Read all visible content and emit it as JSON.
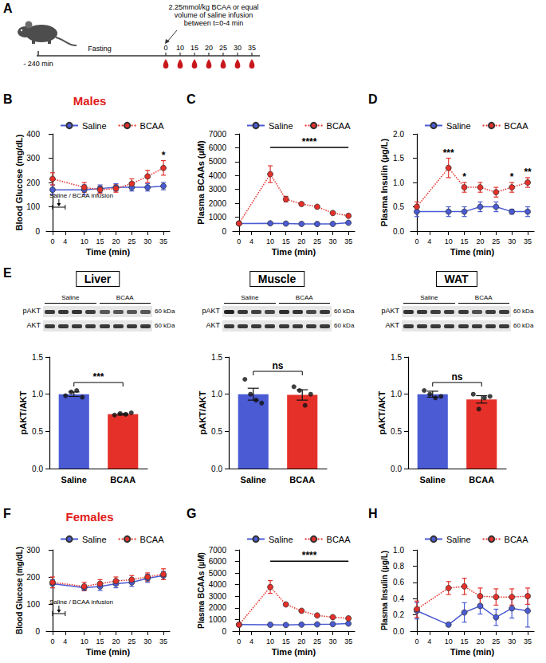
{
  "diagram": {
    "panel": "A",
    "start": "- 240 min",
    "phase": "Fasting",
    "infusion": [
      "2.25mmol/kg BCAA or equal",
      "volume of saline infusion",
      "between t=0-4 min"
    ],
    "times": [
      0,
      10,
      15,
      20,
      25,
      30,
      35
    ]
  },
  "chart_data": [
    {
      "panel": "B",
      "type": "line",
      "title": "Males",
      "xlabel": "Time (min)",
      "ylabel": "Blood Glucose (mg/dL)",
      "x": [
        0,
        10,
        15,
        20,
        25,
        30,
        35
      ],
      "xlim": [
        -2,
        37
      ],
      "xticks": [
        0,
        4,
        10,
        15,
        20,
        25,
        30,
        35
      ],
      "ylim": [
        0,
        400
      ],
      "yticks": [
        0,
        100,
        200,
        300,
        400
      ],
      "grid": false,
      "legend": "top",
      "series": [
        {
          "name": "Saline",
          "color": "#4a5bd4",
          "marker": "circle",
          "line_style": "solid",
          "values": [
            170,
            170,
            175,
            180,
            180,
            180,
            185
          ],
          "errors": [
            20,
            20,
            15,
            15,
            15,
            15,
            15
          ]
        },
        {
          "name": "BCAA",
          "color": "#e5302a",
          "marker": "circle",
          "line_style": "dotted",
          "values": [
            215,
            180,
            170,
            175,
            195,
            225,
            260
          ],
          "errors": [
            25,
            20,
            15,
            15,
            20,
            25,
            30
          ]
        }
      ],
      "annotations": [
        {
          "x": 35,
          "text": "*"
        }
      ],
      "infusion": {
        "x": [
          0,
          4
        ],
        "text": "Saline / BCAA infusion"
      }
    },
    {
      "panel": "C",
      "type": "line",
      "xlabel": "Time (min)",
      "ylabel": "Plasma BCAAs (µM)",
      "x": [
        0,
        10,
        15,
        20,
        25,
        30,
        35
      ],
      "xlim": [
        -2,
        37
      ],
      "xticks": [
        0,
        4,
        10,
        15,
        20,
        25,
        30,
        35
      ],
      "ylim": [
        0,
        7000
      ],
      "yticks": [
        0,
        1000,
        2000,
        3000,
        4000,
        5000,
        6000,
        7000
      ],
      "grid": false,
      "legend": "top",
      "series": [
        {
          "name": "Saline",
          "color": "#4a5bd4",
          "marker": "circle",
          "line_style": "solid",
          "values": [
            550,
            560,
            540,
            520,
            510,
            520,
            600
          ],
          "errors": [
            50,
            40,
            40,
            40,
            40,
            40,
            60
          ]
        },
        {
          "name": "BCAA",
          "color": "#e5302a",
          "marker": "circle",
          "line_style": "dotted",
          "values": [
            550,
            4100,
            2300,
            1950,
            1750,
            1300,
            1100
          ],
          "errors": [
            80,
            600,
            200,
            100,
            100,
            80,
            80
          ]
        }
      ],
      "annotations": [
        {
          "x": [
            10,
            35
          ],
          "text": "****"
        }
      ]
    },
    {
      "panel": "D",
      "type": "line",
      "xlabel": "Time (min)",
      "ylabel": "Plasma Insulin (µg/L)",
      "x": [
        0,
        10,
        15,
        20,
        25,
        30,
        35
      ],
      "xlim": [
        -2,
        37
      ],
      "xticks": [
        0,
        4,
        10,
        15,
        20,
        25,
        30,
        35
      ],
      "ylim": [
        0,
        2
      ],
      "yticks": [
        {
          "value": 0,
          "label": "0.0"
        },
        0.5,
        {
          "value": 1,
          "label": "1.0"
        },
        1.5,
        {
          "value": 2,
          "label": "2.0"
        }
      ],
      "grid": false,
      "legend": "top",
      "series": [
        {
          "name": "Saline",
          "color": "#4a5bd4",
          "marker": "circle",
          "line_style": "solid",
          "values": [
            0.4,
            0.4,
            0.4,
            0.5,
            0.5,
            0.4,
            0.4
          ],
          "errors": [
            0.1,
            0.1,
            0.1,
            0.1,
            0.1,
            0.05,
            0.1
          ]
        },
        {
          "name": "BCAA",
          "color": "#e5302a",
          "marker": "circle",
          "line_style": "dotted",
          "values": [
            0.5,
            1.3,
            0.9,
            0.9,
            0.8,
            0.9,
            1.0
          ],
          "errors": [
            0.1,
            0.2,
            0.1,
            0.1,
            0.1,
            0.1,
            0.1
          ]
        }
      ],
      "annotations": [
        {
          "x": 10,
          "text": "***"
        },
        {
          "x": 15,
          "text": "*"
        },
        {
          "x": 30,
          "text": "*"
        },
        {
          "x": 35,
          "text": "**"
        }
      ]
    },
    {
      "panel": "E",
      "type": "bar",
      "title": "Liver",
      "ylabel": "pAKT/AKT",
      "categories": [
        "Saline",
        "BCAA"
      ],
      "values": [
        1.0,
        0.73
      ],
      "errors": [
        0.03,
        0.01
      ],
      "points": [
        [
          0.98,
          1.03,
          1.05,
          0.96
        ],
        [
          0.72,
          0.74,
          0.73,
          0.75
        ]
      ],
      "colors": [
        "#4a5bd4",
        "#e5302a"
      ],
      "ylim": [
        0,
        1.5
      ],
      "yticks": [
        {
          "value": 0,
          "label": "0.0"
        },
        0.5,
        {
          "value": 1,
          "label": "1.0"
        },
        1.5
      ],
      "grid": false,
      "annotations": [
        {
          "x": [
            "Saline",
            "BCAA"
          ],
          "text": "***"
        }
      ],
      "blot": {
        "groups": [
          "Saline",
          "BCAA"
        ],
        "bands": [
          "pAKT",
          "AKT"
        ],
        "weight": "60 kDa"
      }
    },
    {
      "type": "bar",
      "title": "Muscle",
      "ylabel": "pAKT/AKT",
      "categories": [
        "Saline",
        "BCAA"
      ],
      "values": [
        1.0,
        0.99
      ],
      "errors": [
        0.08,
        0.07
      ],
      "points": [
        [
          1.2,
          1.0,
          0.92,
          0.88
        ],
        [
          1.1,
          1.05,
          0.85,
          1.0
        ]
      ],
      "colors": [
        "#4a5bd4",
        "#e5302a"
      ],
      "ylim": [
        0,
        1.5
      ],
      "yticks": [
        {
          "value": 0,
          "label": "0.0"
        },
        0.5,
        {
          "value": 1,
          "label": "1.0"
        },
        1.5
      ],
      "grid": false,
      "annotations": [
        {
          "x": [
            "Saline",
            "BCAA"
          ],
          "text": "ns"
        }
      ],
      "blot": {
        "groups": [
          "Saline",
          "BCAA"
        ],
        "bands": [
          "pAKT",
          "AKT"
        ],
        "weight": "60 kDa"
      }
    },
    {
      "type": "bar",
      "title": "WAT",
      "ylabel": "pAKT/AKT",
      "categories": [
        "Saline",
        "BCAA"
      ],
      "values": [
        1.0,
        0.93
      ],
      "errors": [
        0.04,
        0.05
      ],
      "points": [
        [
          1.05,
          1.0,
          0.95,
          0.97
        ],
        [
          1.0,
          0.8,
          0.95,
          0.97
        ]
      ],
      "colors": [
        "#4a5bd4",
        "#e5302a"
      ],
      "ylim": [
        0,
        1.5
      ],
      "yticks": [
        {
          "value": 0,
          "label": "0.0"
        },
        0.5,
        {
          "value": 1,
          "label": "1.0"
        },
        1.5
      ],
      "grid": false,
      "annotations": [
        {
          "x": [
            "Saline",
            "BCAA"
          ],
          "text": "ns"
        }
      ],
      "blot": {
        "groups": [
          "Saline",
          "BCAA"
        ],
        "bands": [
          "pAKT",
          "AKT"
        ],
        "weight": "60 kDa"
      }
    },
    {
      "panel": "F",
      "type": "line",
      "title": "Females",
      "xlabel": "Time (min)",
      "ylabel": "Blood Glucose (mg/dL)",
      "x": [
        0,
        10,
        15,
        20,
        25,
        30,
        35
      ],
      "xlim": [
        -2,
        37
      ],
      "xticks": [
        0,
        4,
        10,
        15,
        20,
        25,
        30,
        35
      ],
      "ylim": [
        0,
        300
      ],
      "yticks": [
        0,
        100,
        200,
        300
      ],
      "grid": false,
      "legend": "top",
      "series": [
        {
          "name": "Saline",
          "color": "#4a5bd4",
          "marker": "circle",
          "line_style": "solid",
          "values": [
            175,
            160,
            165,
            175,
            180,
            195,
            205
          ],
          "errors": [
            15,
            10,
            15,
            15,
            15,
            15,
            15
          ]
        },
        {
          "name": "BCAA",
          "color": "#e5302a",
          "marker": "circle",
          "line_style": "dotted",
          "values": [
            180,
            165,
            175,
            185,
            190,
            200,
            210
          ],
          "errors": [
            20,
            15,
            15,
            15,
            15,
            15,
            20
          ]
        }
      ],
      "annotations": [],
      "infusion": {
        "x": [
          0,
          4
        ],
        "text": "Saline / BCAA infusion"
      }
    },
    {
      "panel": "G",
      "type": "line",
      "xlabel": "Time (min)",
      "ylabel": "Plasma BCAAs (µM)",
      "x": [
        0,
        10,
        15,
        20,
        25,
        30,
        35
      ],
      "xlim": [
        -2,
        37
      ],
      "xticks": [
        0,
        4,
        10,
        15,
        20,
        25,
        30,
        35
      ],
      "ylim": [
        0,
        7000
      ],
      "yticks": [
        0,
        1000,
        2000,
        3000,
        4000,
        5000,
        6000,
        7000
      ],
      "grid": false,
      "legend": "top",
      "series": [
        {
          "name": "Saline",
          "color": "#4a5bd4",
          "marker": "circle",
          "line_style": "solid",
          "values": [
            560,
            550,
            530,
            560,
            580,
            600,
            650
          ],
          "errors": [
            50,
            40,
            40,
            40,
            40,
            50,
            60
          ]
        },
        {
          "name": "BCAA",
          "color": "#e5302a",
          "marker": "circle",
          "line_style": "dotted",
          "values": [
            550,
            3800,
            2300,
            1750,
            1350,
            1200,
            1100
          ],
          "errors": [
            150,
            550,
            100,
            100,
            100,
            100,
            100
          ]
        }
      ],
      "annotations": [
        {
          "x": [
            10,
            35
          ],
          "text": "****"
        }
      ]
    },
    {
      "panel": "H",
      "type": "line",
      "xlabel": "Time (min)",
      "ylabel": "Plasma Insulin (µg/L)",
      "x": [
        0,
        10,
        15,
        20,
        25,
        30,
        35
      ],
      "xlim": [
        -2,
        37
      ],
      "xticks": [
        0,
        4,
        10,
        15,
        20,
        25,
        30,
        35
      ],
      "ylim": [
        0,
        1
      ],
      "yticks": [
        {
          "value": 0,
          "label": "0.0"
        },
        0.2,
        0.4,
        0.6,
        0.8,
        {
          "value": 1,
          "label": "1.0"
        }
      ],
      "grid": false,
      "legend": "top",
      "series": [
        {
          "name": "Saline",
          "color": "#4a5bd4",
          "marker": "circle",
          "line_style": "solid",
          "values": [
            0.25,
            0.08,
            0.23,
            0.31,
            0.17,
            0.28,
            0.25
          ],
          "errors": [
            0.1,
            0.02,
            0.12,
            0.1,
            0.1,
            0.12,
            0.2
          ]
        },
        {
          "name": "BCAA",
          "color": "#e5302a",
          "marker": "circle",
          "line_style": "dotted",
          "values": [
            0.27,
            0.53,
            0.55,
            0.43,
            0.42,
            0.42,
            0.43
          ],
          "errors": [
            0.1,
            0.08,
            0.1,
            0.1,
            0.1,
            0.1,
            0.1
          ]
        }
      ],
      "annotations": []
    }
  ]
}
